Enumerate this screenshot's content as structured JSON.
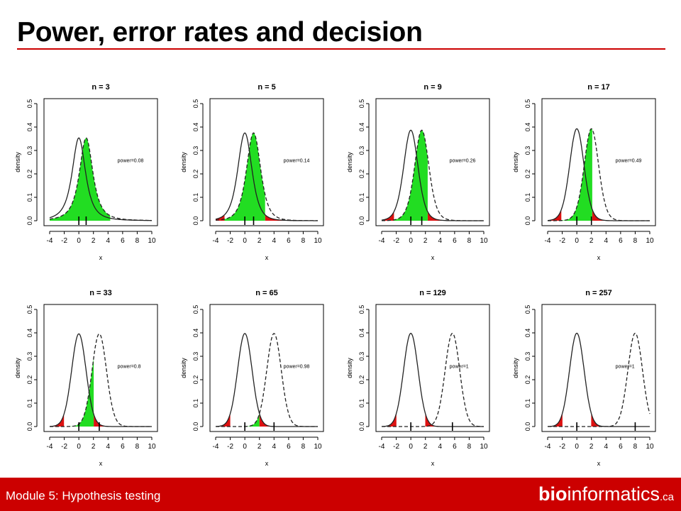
{
  "slide": {
    "title": "Power, error rates and decision",
    "footer": {
      "module": "Module 5: Hypothesis testing",
      "logo_bold": "bio",
      "logo_regular": "informatics",
      "logo_suffix": ".ca"
    }
  },
  "colors": {
    "accent_red": "#cc0000",
    "title_rule": "#cc0000",
    "power_fill": "#22dd22",
    "alpha_fill": "#dd1111",
    "curve": "#222222"
  },
  "chart_data": [
    {
      "type": "line",
      "title": "n = 3",
      "xlabel": "x",
      "ylabel": "density",
      "xlim": [
        -4,
        10
      ],
      "ylim": [
        0,
        0.5
      ],
      "x_ticks": [
        -4,
        -2,
        0,
        2,
        4,
        6,
        8,
        10
      ],
      "y_ticks": [
        0.0,
        0.1,
        0.2,
        0.3,
        0.4,
        0.5
      ],
      "annotation": "power=0.08",
      "series": [
        {
          "style": "solid",
          "center": 0,
          "df": 2
        },
        {
          "style": "dashed",
          "center": 1.0,
          "df": 2
        }
      ],
      "critical_values": [
        -4.3,
        4.3
      ],
      "null_range": [
        -4,
        4.3
      ]
    },
    {
      "type": "line",
      "title": "n = 5",
      "xlabel": "x",
      "ylabel": "density",
      "xlim": [
        -4,
        10
      ],
      "ylim": [
        0,
        0.5
      ],
      "x_ticks": [
        -4,
        -2,
        0,
        2,
        4,
        6,
        8,
        10
      ],
      "y_ticks": [
        0.0,
        0.1,
        0.2,
        0.3,
        0.4,
        0.5
      ],
      "annotation": "power=0.14",
      "series": [
        {
          "style": "solid",
          "center": 0,
          "df": 4
        },
        {
          "style": "dashed",
          "center": 1.2,
          "df": 4
        }
      ],
      "critical_values": [
        -2.78,
        2.78
      ],
      "null_range": [
        -4,
        10
      ]
    },
    {
      "type": "line",
      "title": "n = 9",
      "xlabel": "x",
      "ylabel": "density",
      "xlim": [
        -4,
        10
      ],
      "ylim": [
        0,
        0.5
      ],
      "x_ticks": [
        -4,
        -2,
        0,
        2,
        4,
        6,
        8,
        10
      ],
      "y_ticks": [
        0.0,
        0.1,
        0.2,
        0.3,
        0.4,
        0.5
      ],
      "annotation": "power=0.26",
      "series": [
        {
          "style": "solid",
          "center": 0,
          "df": 8
        },
        {
          "style": "dashed",
          "center": 1.5,
          "df": 8
        }
      ],
      "critical_values": [
        -2.31,
        2.31
      ],
      "null_range": [
        -4,
        10
      ]
    },
    {
      "type": "line",
      "title": "n = 17",
      "xlabel": "x",
      "ylabel": "density",
      "xlim": [
        -4,
        10
      ],
      "ylim": [
        0,
        0.5
      ],
      "x_ticks": [
        -4,
        -2,
        0,
        2,
        4,
        6,
        8,
        10
      ],
      "y_ticks": [
        0.0,
        0.1,
        0.2,
        0.3,
        0.4,
        0.5
      ],
      "annotation": "power=0.49",
      "series": [
        {
          "style": "solid",
          "center": 0,
          "df": 16
        },
        {
          "style": "dashed",
          "center": 2.0,
          "df": 16
        }
      ],
      "critical_values": [
        -2.12,
        2.12
      ],
      "null_range": [
        -4,
        10
      ]
    },
    {
      "type": "line",
      "title": "n = 33",
      "xlabel": "x",
      "ylabel": "density",
      "xlim": [
        -4,
        10
      ],
      "ylim": [
        0,
        0.5
      ],
      "x_ticks": [
        -4,
        -2,
        0,
        2,
        4,
        6,
        8,
        10
      ],
      "y_ticks": [
        0.0,
        0.1,
        0.2,
        0.3,
        0.4,
        0.5
      ],
      "annotation": "power=0.8",
      "series": [
        {
          "style": "solid",
          "center": 0,
          "df": 32
        },
        {
          "style": "dashed",
          "center": 2.8,
          "df": 32
        }
      ],
      "critical_values": [
        -2.04,
        2.04
      ],
      "null_range": [
        -4,
        10
      ]
    },
    {
      "type": "line",
      "title": "n = 65",
      "xlabel": "x",
      "ylabel": "density",
      "xlim": [
        -4,
        10
      ],
      "ylim": [
        0,
        0.5
      ],
      "x_ticks": [
        -4,
        -2,
        0,
        2,
        4,
        6,
        8,
        10
      ],
      "y_ticks": [
        0.0,
        0.1,
        0.2,
        0.3,
        0.4,
        0.5
      ],
      "annotation": "power=0.98",
      "series": [
        {
          "style": "solid",
          "center": 0,
          "df": 64
        },
        {
          "style": "dashed",
          "center": 4.0,
          "df": 64
        }
      ],
      "critical_values": [
        -2.0,
        2.0
      ],
      "null_range": [
        -4,
        10
      ]
    },
    {
      "type": "line",
      "title": "n = 129",
      "xlabel": "x",
      "ylabel": "density",
      "xlim": [
        -4,
        10
      ],
      "ylim": [
        0,
        0.5
      ],
      "x_ticks": [
        -4,
        -2,
        0,
        2,
        4,
        6,
        8,
        10
      ],
      "y_ticks": [
        0.0,
        0.1,
        0.2,
        0.3,
        0.4,
        0.5
      ],
      "annotation": "power=1",
      "series": [
        {
          "style": "solid",
          "center": 0,
          "df": 128
        },
        {
          "style": "dashed",
          "center": 5.7,
          "df": 128
        }
      ],
      "critical_values": [
        -1.98,
        1.98
      ],
      "null_range": [
        -4,
        10
      ]
    },
    {
      "type": "line",
      "title": "n = 257",
      "xlabel": "x",
      "ylabel": "density",
      "xlim": [
        -4,
        10
      ],
      "ylim": [
        0,
        0.5
      ],
      "x_ticks": [
        -4,
        -2,
        0,
        2,
        4,
        6,
        8,
        10
      ],
      "y_ticks": [
        0.0,
        0.1,
        0.2,
        0.3,
        0.4,
        0.5
      ],
      "annotation": "power=1",
      "series": [
        {
          "style": "solid",
          "center": 0,
          "df": 256
        },
        {
          "style": "dashed",
          "center": 8.0,
          "df": 256
        }
      ],
      "critical_values": [
        -1.97,
        1.97
      ],
      "null_range": [
        -4,
        10
      ]
    }
  ]
}
